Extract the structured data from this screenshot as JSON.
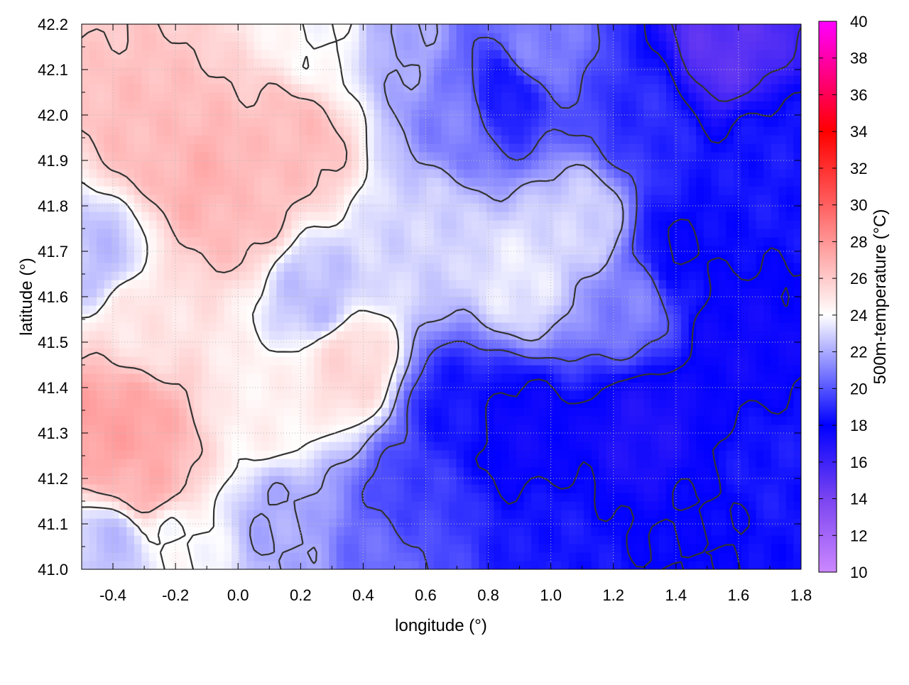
{
  "chart_data": {
    "type": "heatmap",
    "xlabel": "longitude (°)",
    "ylabel": "latitude (°)",
    "colorbar_label": "500m-temperature (°C)",
    "xlim": [
      -0.5,
      1.8
    ],
    "ylim": [
      41.0,
      42.2
    ],
    "xticks": [
      -0.4,
      -0.2,
      0.0,
      0.2,
      0.4,
      0.6,
      0.8,
      1.0,
      1.2,
      1.4,
      1.6,
      1.8
    ],
    "xtick_labels": [
      "-0.4",
      "-0.2",
      "0.0",
      "0.2",
      "0.4",
      "0.6",
      "0.8",
      "1.0",
      "1.2",
      "1.4",
      "1.6",
      "1.8"
    ],
    "yticks": [
      41.0,
      41.1,
      41.2,
      41.3,
      41.4,
      41.5,
      41.6,
      41.7,
      41.8,
      41.9,
      42.0,
      42.1,
      42.2
    ],
    "ytick_labels": [
      "41.0",
      "41.1",
      "41.2",
      "41.3",
      "41.4",
      "41.5",
      "41.6",
      "41.7",
      "41.8",
      "41.9",
      "42.0",
      "42.1",
      "42.2"
    ],
    "colorbar_range": [
      10,
      40
    ],
    "colorbar_ticks": [
      10,
      12,
      14,
      16,
      18,
      20,
      22,
      24,
      26,
      28,
      30,
      32,
      34,
      36,
      38,
      40
    ],
    "colorbar_tick_labels": [
      "10",
      "12",
      "14",
      "16",
      "18",
      "20",
      "22",
      "24",
      "26",
      "28",
      "30",
      "32",
      "34",
      "36",
      "38",
      "40"
    ],
    "colormap": [
      {
        "value": 10,
        "color": "#cc88ff"
      },
      {
        "value": 14,
        "color": "#7a44f0"
      },
      {
        "value": 18,
        "color": "#0000ff"
      },
      {
        "value": 24,
        "color": "#ffffff"
      },
      {
        "value": 30,
        "color": "#ff6060"
      },
      {
        "value": 34,
        "color": "#ff0000"
      },
      {
        "value": 40,
        "color": "#ff00ff"
      }
    ],
    "grid": true,
    "field_anchors": [
      {
        "lon": -0.45,
        "lat": 41.3,
        "temp": 27.5
      },
      {
        "lon": -0.35,
        "lat": 41.3,
        "temp": 27.5
      },
      {
        "lon": -0.3,
        "lat": 41.2,
        "temp": 27.0
      },
      {
        "lon": -0.1,
        "lat": 41.85,
        "temp": 27.0
      },
      {
        "lon": 0.0,
        "lat": 41.8,
        "temp": 26.5
      },
      {
        "lon": -0.3,
        "lat": 41.95,
        "temp": 26.5
      },
      {
        "lon": 0.2,
        "lat": 41.95,
        "temp": 26.5
      },
      {
        "lon": 0.35,
        "lat": 41.45,
        "temp": 25.5
      },
      {
        "lon": -0.3,
        "lat": 41.55,
        "temp": 25.0
      },
      {
        "lon": 0.1,
        "lat": 41.35,
        "temp": 24.5
      },
      {
        "lon": 0.6,
        "lat": 41.75,
        "temp": 23.0
      },
      {
        "lon": 0.9,
        "lat": 41.65,
        "temp": 23.5
      },
      {
        "lon": 1.1,
        "lat": 41.75,
        "temp": 23.0
      },
      {
        "lon": 0.7,
        "lat": 42.0,
        "temp": 21.0
      },
      {
        "lon": 0.85,
        "lat": 42.05,
        "temp": 18.5
      },
      {
        "lon": 0.95,
        "lat": 42.15,
        "temp": 21.0
      },
      {
        "lon": 0.5,
        "lat": 42.15,
        "temp": 22.0
      },
      {
        "lon": 0.3,
        "lat": 42.15,
        "temp": 24.0
      },
      {
        "lon": 1.25,
        "lat": 41.6,
        "temp": 21.0
      },
      {
        "lon": 1.4,
        "lat": 41.7,
        "temp": 18.0
      },
      {
        "lon": 1.6,
        "lat": 41.5,
        "temp": 17.5
      },
      {
        "lon": 1.7,
        "lat": 41.9,
        "temp": 18.5
      },
      {
        "lon": 1.3,
        "lat": 42.0,
        "temp": 19.0
      },
      {
        "lon": 1.55,
        "lat": 42.15,
        "temp": 15.0
      },
      {
        "lon": 1.3,
        "lat": 41.3,
        "temp": 17.0
      },
      {
        "lon": 1.5,
        "lat": 41.1,
        "temp": 18.0
      },
      {
        "lon": 1.7,
        "lat": 41.2,
        "temp": 18.5
      },
      {
        "lon": 0.9,
        "lat": 41.3,
        "temp": 17.5
      },
      {
        "lon": 0.7,
        "lat": 41.35,
        "temp": 18.5
      },
      {
        "lon": 0.55,
        "lat": 41.15,
        "temp": 19.5
      },
      {
        "lon": 0.45,
        "lat": 41.05,
        "temp": 20.5
      },
      {
        "lon": 1.0,
        "lat": 41.05,
        "temp": 18.5
      },
      {
        "lon": 0.15,
        "lat": 41.1,
        "temp": 22.0
      },
      {
        "lon": -0.2,
        "lat": 41.05,
        "temp": 24.0
      },
      {
        "lon": -0.4,
        "lat": 41.05,
        "temp": 22.5
      },
      {
        "lon": -0.45,
        "lat": 41.7,
        "temp": 22.5
      },
      {
        "lon": 0.25,
        "lat": 41.6,
        "temp": 22.5
      }
    ]
  }
}
